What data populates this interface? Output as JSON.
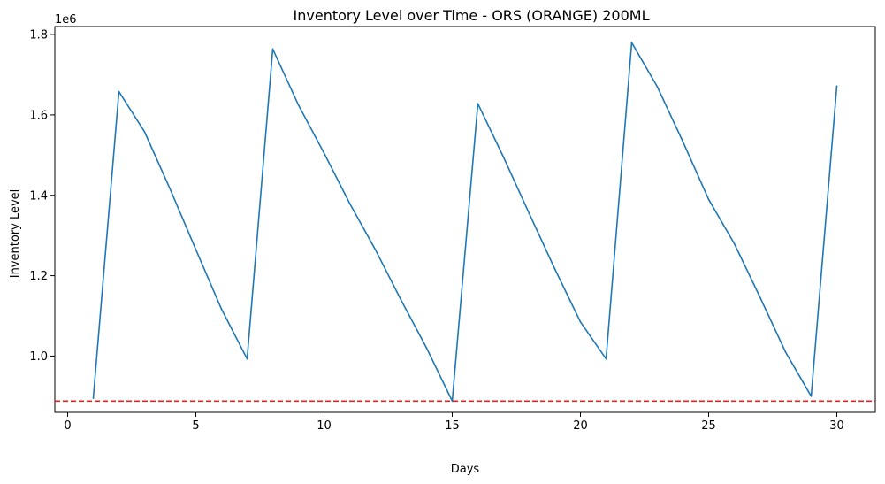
{
  "chart_data": {
    "type": "line",
    "title": "Inventory Level over Time - ORS (ORANGE) 200ML",
    "xlabel": "Days",
    "ylabel": "Inventory Level",
    "y_offset_label": "1e6",
    "xlim": [
      -0.5,
      31.5
    ],
    "ylim": [
      0.86,
      1.82
    ],
    "x_ticks": [
      0,
      5,
      10,
      15,
      20,
      25,
      30
    ],
    "x_tick_labels": [
      "0",
      "5",
      "10",
      "15",
      "20",
      "25",
      "30"
    ],
    "y_ticks": [
      1.0,
      1.2,
      1.4,
      1.6,
      1.8
    ],
    "y_tick_labels": [
      "1.0",
      "1.2",
      "1.4",
      "1.6",
      "1.8"
    ],
    "grid": false,
    "legend": "none",
    "series": [
      {
        "color": "#1f77b4",
        "x": [
          1,
          2,
          3,
          4,
          5,
          6,
          7,
          8,
          9,
          10,
          11,
          12,
          13,
          14,
          15,
          16,
          17,
          18,
          19,
          20,
          21,
          22,
          23,
          24,
          25,
          26,
          27,
          28,
          29,
          30
        ],
        "y": [
          0.895,
          1.658,
          1.558,
          1.415,
          1.265,
          1.117,
          0.993,
          1.764,
          1.625,
          1.505,
          1.38,
          1.265,
          1.14,
          1.02,
          0.888,
          1.628,
          1.495,
          1.355,
          1.217,
          1.085,
          0.993,
          1.78,
          1.67,
          1.533,
          1.39,
          1.28,
          1.147,
          1.01,
          0.9,
          1.672
        ]
      }
    ],
    "reference_lines": [
      {
        "y": 0.888,
        "color": "#d62728",
        "style": "dashed"
      }
    ]
  }
}
